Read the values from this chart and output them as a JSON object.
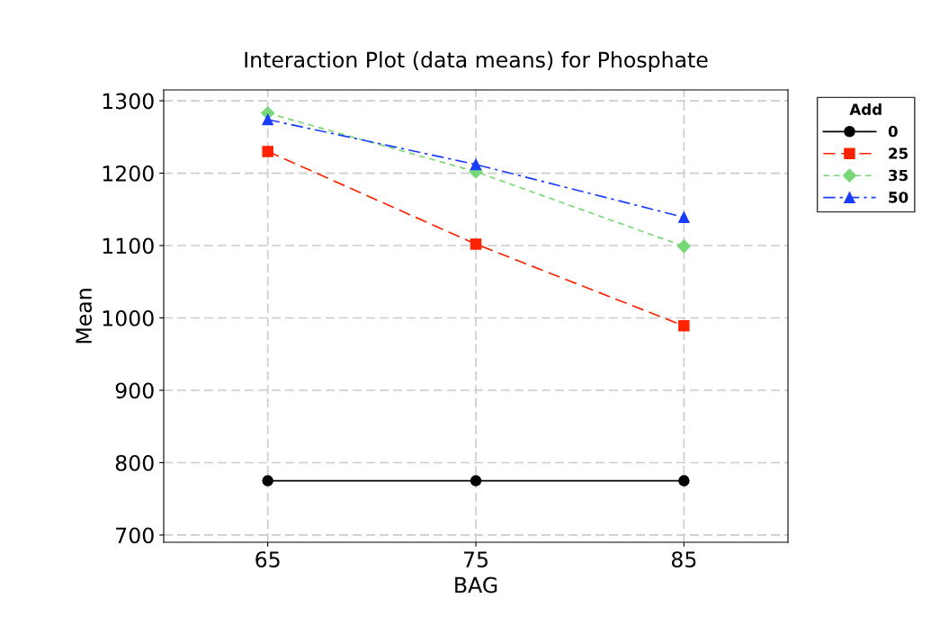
{
  "chart_data": {
    "type": "line",
    "title": "Interaction Plot (data means) for Phosphate",
    "xlabel": "BAG",
    "ylabel": "Mean",
    "legend_title": "Add",
    "x": [
      65,
      75,
      85
    ],
    "series": [
      {
        "name": "0",
        "color": "#000000",
        "values": [
          775,
          775,
          775
        ],
        "marker": "circle",
        "line_style": "solid"
      },
      {
        "name": "25",
        "color": "#ff2200",
        "values": [
          1230,
          1102,
          989
        ],
        "marker": "square",
        "line_style": "dashed"
      },
      {
        "name": "35",
        "color": "#77d877",
        "values": [
          1283,
          1202,
          1099
        ],
        "marker": "diamond",
        "line_style": "dotted"
      },
      {
        "name": "50",
        "color": "#1a3cff",
        "values": [
          1274,
          1212,
          1139
        ],
        "marker": "triangle",
        "line_style": "dashdot"
      }
    ],
    "xlim": [
      60,
      90
    ],
    "xticks": [
      65,
      75,
      85
    ],
    "ylim": [
      690,
      1315
    ],
    "yticks": [
      700,
      800,
      900,
      1000,
      1100,
      1200,
      1300
    ],
    "grid": true,
    "legend": "top right"
  }
}
